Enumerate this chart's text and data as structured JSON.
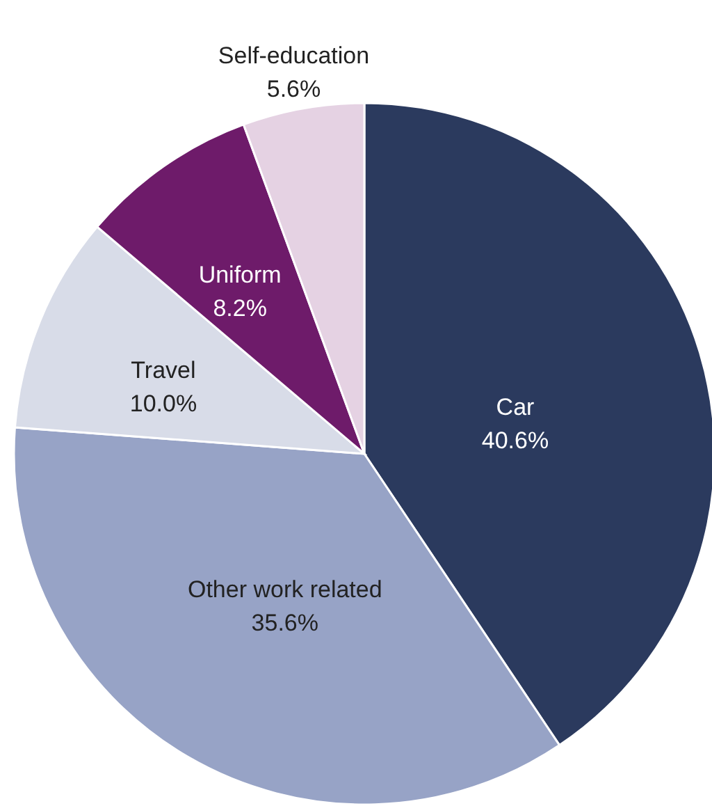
{
  "chart_data": {
    "type": "pie",
    "categories": [
      "Car",
      "Other work related",
      "Travel",
      "Uniform",
      "Self-education"
    ],
    "values": [
      40.6,
      35.6,
      10.0,
      8.2,
      5.6
    ],
    "value_labels": [
      "40.6%",
      "35.6%",
      "10.0%",
      "8.2%",
      "5.6%"
    ],
    "colors": [
      "#2b3a5e",
      "#97a3c6",
      "#d8dce8",
      "#6e1b6a",
      "#e5d2e3"
    ]
  }
}
